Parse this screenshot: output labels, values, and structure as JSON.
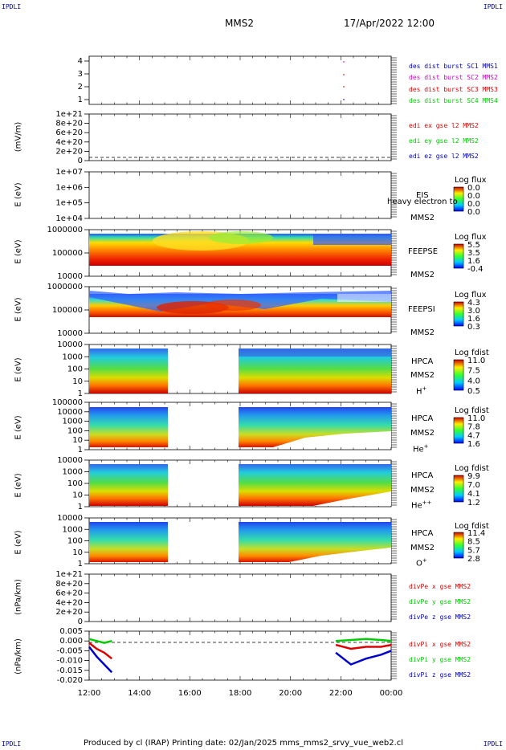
{
  "page": {
    "corner_label": "IPDLI",
    "spacecraft": "MMS2",
    "datetime": "17/Apr/2022 12:00",
    "footer": "Produced by cl (IRAP)   Printing date: 02/Jan/2025   mms_mms2_srvy_vue_web2.cl"
  },
  "colors": {
    "blue": "#0000cc",
    "magenta": "#cc00cc",
    "red": "#dd0000",
    "green": "#00cc00"
  },
  "x_axis": {
    "ticks": [
      "12:00",
      "14:00",
      "16:00",
      "18:00",
      "20:00",
      "22:00",
      "00:00"
    ]
  },
  "panels": {
    "dist": {
      "y_ticks": [
        "1",
        "2",
        "3",
        "4"
      ],
      "legend": [
        "des dist burst SC1 MMS1",
        "des dist burst SC2 MMS2",
        "des dist burst SC3 MMS3",
        "des dist burst SC4 MMS4"
      ]
    },
    "edi": {
      "ylabel": "(mV/m)",
      "y_ticks": [
        "0",
        "2e+20",
        "4e+20",
        "6e+20",
        "8e+20",
        "1e+21"
      ],
      "legend": [
        "edi ex gse l2 MMS2",
        "edi ey gse l2 MMS2",
        "edi ez gse l2 MMS2"
      ]
    },
    "eis": {
      "ylabel": "E (eV)",
      "y_ticks": [
        "1e+04",
        "1e+05",
        "1e+06",
        "1e+07"
      ],
      "name": "EIS",
      "overlay_text": "heavy electron to",
      "sc": "MMS2",
      "cbar_title": "Log flux",
      "cbar_ticks": [
        "0.0",
        "0.0",
        "0.0",
        "0.0"
      ]
    },
    "feepse": {
      "ylabel": "E (eV)",
      "y_ticks": [
        "10000",
        "100000",
        "1000000"
      ],
      "name": "FEEPSE",
      "sc": "MMS2",
      "cbar_title": "Log flux",
      "cbar_ticks": [
        "5.5",
        "3.5",
        "1.6",
        "-0.4"
      ]
    },
    "feepsi": {
      "ylabel": "E (eV)",
      "y_ticks": [
        "10000",
        "100000",
        "1000000"
      ],
      "name": "FEEPSI",
      "sc": "MMS2",
      "cbar_title": "Log flux",
      "cbar_ticks": [
        "4.3",
        "3.0",
        "1.6",
        "0.3"
      ]
    },
    "hpca_h": {
      "ylabel": "E (eV)",
      "y_ticks": [
        "1",
        "10",
        "100",
        "1000",
        "10000"
      ],
      "name": "HPCA",
      "sc": "MMS2",
      "species": "H",
      "species_sup": "+",
      "cbar_title": "Log fdist",
      "cbar_ticks": [
        "11.0",
        "7.5",
        "4.0",
        "0.5"
      ]
    },
    "hpca_he": {
      "ylabel": "E (eV)",
      "y_ticks": [
        "1",
        "10",
        "100",
        "1000",
        "10000",
        "100000"
      ],
      "name": "HPCA",
      "sc": "MMS2",
      "species": "He",
      "species_sup": "+",
      "cbar_title": "Log fdist",
      "cbar_ticks": [
        "11.0",
        "7.8",
        "4.7",
        "1.6"
      ]
    },
    "hpca_hepp": {
      "ylabel": "E (eV)",
      "y_ticks": [
        "1",
        "10",
        "100",
        "1000",
        "10000"
      ],
      "name": "HPCA",
      "sc": "MMS2",
      "species": "He",
      "species_sup": "++",
      "cbar_title": "Log fdist",
      "cbar_ticks": [
        "9.9",
        "7.0",
        "4.1",
        "1.2"
      ]
    },
    "hpca_o": {
      "ylabel": "E (eV)",
      "y_ticks": [
        "1",
        "10",
        "100",
        "1000",
        "10000"
      ],
      "name": "HPCA",
      "sc": "MMS2",
      "species": "O",
      "species_sup": "+",
      "cbar_title": "Log fdist",
      "cbar_ticks": [
        "11.4",
        "8.5",
        "5.7",
        "2.8"
      ]
    },
    "divpe": {
      "ylabel": "(nPa/km)",
      "y_ticks": [
        "0",
        "2e+20",
        "4e+20",
        "6e+20",
        "8e+20",
        "1e+21"
      ],
      "legend": [
        "divPe x gse MMS2",
        "divPe y gse MMS2",
        "divPe z gse MMS2"
      ]
    },
    "divpi": {
      "ylabel": "(nPa/km)",
      "y_ticks": [
        "-0.020",
        "-0.015",
        "-0.010",
        "-0.005",
        "0.000",
        "0.005"
      ],
      "legend": [
        "divPi x gse MMS2",
        "divPi y gse MMS2",
        "divPi z gse MMS2"
      ]
    }
  },
  "chart_data": {
    "type": "heatmap",
    "x_range": [
      "12:00",
      "00:00"
    ],
    "hpca_data_gap": [
      "15:10",
      "17:55"
    ],
    "divpi_series": [
      {
        "name": "divPi x gse MMS2",
        "segments": [
          {
            "t": [
              12.0,
              12.3,
              12.6,
              12.9
            ],
            "v": [
              -0.001,
              -0.004,
              -0.006,
              -0.009
            ]
          },
          {
            "t": [
              21.8,
              22.4,
              23.0,
              23.6,
              24.0
            ],
            "v": [
              -0.002,
              -0.004,
              -0.003,
              -0.003,
              -0.002
            ]
          }
        ]
      },
      {
        "name": "divPi y gse MMS2",
        "segments": [
          {
            "t": [
              12.0,
              12.3,
              12.6,
              12.9
            ],
            "v": [
              0.001,
              0.0,
              -0.001,
              0.0
            ]
          },
          {
            "t": [
              21.8,
              22.4,
              23.0,
              23.6,
              24.0
            ],
            "v": [
              0.0,
              0.0005,
              0.001,
              0.0005,
              0.0
            ]
          }
        ]
      },
      {
        "name": "divPi z gse MMS2",
        "segments": [
          {
            "t": [
              12.0,
              12.3,
              12.6,
              12.9
            ],
            "v": [
              -0.003,
              -0.008,
              -0.012,
              -0.016
            ]
          },
          {
            "t": [
              21.8,
              22.4,
              23.0,
              23.6,
              24.0
            ],
            "v": [
              -0.006,
              -0.012,
              -0.009,
              -0.007,
              -0.005
            ]
          }
        ]
      }
    ]
  }
}
